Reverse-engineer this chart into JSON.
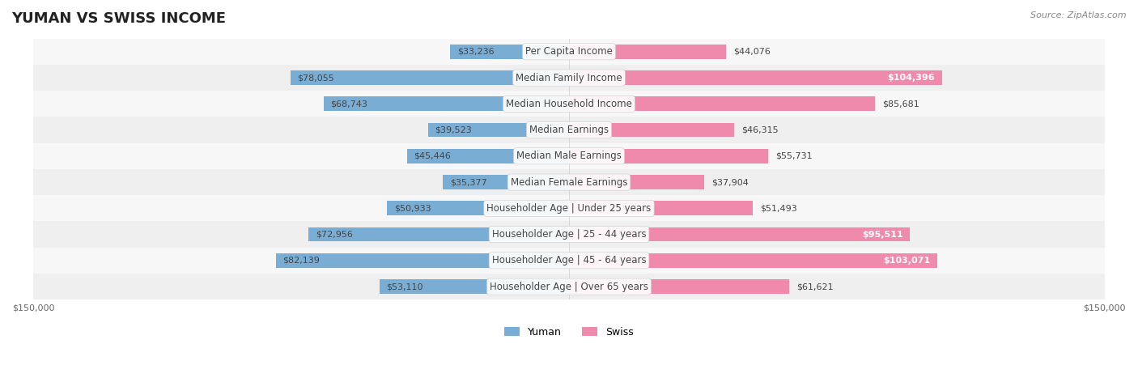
{
  "title": "YUMAN VS SWISS INCOME",
  "source": "Source: ZipAtlas.com",
  "categories": [
    "Per Capita Income",
    "Median Family Income",
    "Median Household Income",
    "Median Earnings",
    "Median Male Earnings",
    "Median Female Earnings",
    "Householder Age | Under 25 years",
    "Householder Age | 25 - 44 years",
    "Householder Age | 45 - 64 years",
    "Householder Age | Over 65 years"
  ],
  "yuman_values": [
    33236,
    78055,
    68743,
    39523,
    45446,
    35377,
    50933,
    72956,
    82139,
    53110
  ],
  "swiss_values": [
    44076,
    104396,
    85681,
    46315,
    55731,
    37904,
    51493,
    95511,
    103071,
    61621
  ],
  "yuman_color": "#7aadd4",
  "swiss_color": "#f08aad",
  "yuman_label_color": "#5a8fbf",
  "swiss_label_color": "#e06090",
  "bar_bg_color": "#f0f0f0",
  "row_bg_color_even": "#f7f7f7",
  "row_bg_color_odd": "#efefef",
  "max_value": 150000,
  "bar_height": 0.55,
  "title_fontsize": 13,
  "label_fontsize": 8.5,
  "value_fontsize": 8,
  "legend_fontsize": 9,
  "axis_label_fontsize": 8
}
